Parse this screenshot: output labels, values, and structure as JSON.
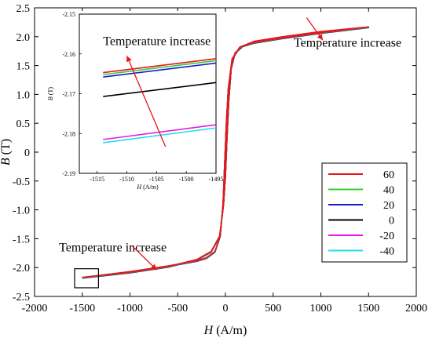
{
  "chart_data": [
    {
      "type": "line",
      "role": "main",
      "xlabel_symbol": "H",
      "xlabel_unit": " (A/m)",
      "ylabel_symbol": "B",
      "ylabel_unit": " (T)",
      "xlim": [
        -2000,
        2000
      ],
      "ylim": [
        -2.5,
        2.5
      ],
      "x_ticks": [
        -2000,
        -1500,
        -1000,
        -500,
        0,
        500,
        1000,
        1500,
        2000
      ],
      "y_ticks": [
        -2.5,
        -2.0,
        -1.5,
        -1.0,
        -0.5,
        0,
        0.5,
        1.0,
        1.5,
        2.0,
        2.5
      ],
      "y_tick_labels": [
        "-2.5",
        "-2.0",
        "-1.5",
        "-1.0",
        "-0.5",
        "0",
        "0.5",
        "1.0",
        "1.5",
        "2.0",
        "2.5"
      ],
      "grid": false,
      "series": [
        {
          "name": "60",
          "color": "#e8141c",
          "ascending": [
            [
              -1500,
              -2.17
            ],
            [
              -1000,
              -2.08
            ],
            [
              -600,
              -1.98
            ],
            [
              -300,
              -1.86
            ],
            [
              -150,
              -1.72
            ],
            [
              -60,
              -1.45
            ],
            [
              -20,
              -0.9
            ],
            [
              0,
              -0.4
            ],
            [
              15,
              0.2
            ],
            [
              35,
              0.9
            ],
            [
              60,
              1.45
            ],
            [
              100,
              1.72
            ],
            [
              180,
              1.84
            ],
            [
              300,
              1.9
            ],
            [
              600,
              1.98
            ],
            [
              1000,
              2.07
            ],
            [
              1500,
              2.17
            ]
          ],
          "descending": [
            [
              1500,
              2.17
            ],
            [
              1000,
              2.09
            ],
            [
              600,
              2.0
            ],
            [
              300,
              1.92
            ],
            [
              150,
              1.82
            ],
            [
              70,
              1.62
            ],
            [
              30,
              1.1
            ],
            [
              10,
              0.5
            ],
            [
              -8,
              -0.2
            ],
            [
              -25,
              -0.9
            ],
            [
              -55,
              -1.45
            ],
            [
              -110,
              -1.72
            ],
            [
              -200,
              -1.83
            ],
            [
              -300,
              -1.88
            ],
            [
              -600,
              -1.97
            ],
            [
              -1000,
              -2.07
            ],
            [
              -1500,
              -2.17
            ]
          ]
        },
        {
          "name": "40",
          "color": "#33cc33",
          "ascending": [
            [
              -1500,
              -2.175
            ],
            [
              -1000,
              -2.085
            ],
            [
              -600,
              -1.985
            ],
            [
              -300,
              -1.865
            ],
            [
              -150,
              -1.725
            ],
            [
              -60,
              -1.455
            ],
            [
              -20,
              -0.905
            ],
            [
              0,
              -0.405
            ],
            [
              15,
              0.195
            ],
            [
              35,
              0.895
            ],
            [
              60,
              1.445
            ],
            [
              100,
              1.715
            ],
            [
              180,
              1.835
            ],
            [
              300,
              1.895
            ],
            [
              600,
              1.975
            ],
            [
              1000,
              2.065
            ],
            [
              1500,
              2.165
            ]
          ],
          "descending": [
            [
              1500,
              2.165
            ],
            [
              1000,
              2.085
            ],
            [
              600,
              1.995
            ],
            [
              300,
              1.915
            ],
            [
              150,
              1.815
            ],
            [
              70,
              1.615
            ],
            [
              30,
              1.095
            ],
            [
              10,
              0.495
            ],
            [
              -8,
              -0.205
            ],
            [
              -25,
              -0.905
            ],
            [
              -55,
              -1.455
            ],
            [
              -110,
              -1.725
            ],
            [
              -200,
              -1.835
            ],
            [
              -300,
              -1.885
            ],
            [
              -600,
              -1.975
            ],
            [
              -1000,
              -2.075
            ],
            [
              -1500,
              -2.175
            ]
          ]
        },
        {
          "name": "20",
          "color": "#1a1acc",
          "ascending": [
            [
              -1500,
              -2.178
            ],
            [
              -1000,
              -2.088
            ],
            [
              -600,
              -1.988
            ],
            [
              -300,
              -1.868
            ],
            [
              -150,
              -1.728
            ],
            [
              -60,
              -1.458
            ],
            [
              -20,
              -0.908
            ],
            [
              0,
              -0.408
            ],
            [
              15,
              0.192
            ],
            [
              35,
              0.892
            ],
            [
              60,
              1.442
            ],
            [
              100,
              1.712
            ],
            [
              180,
              1.832
            ],
            [
              300,
              1.892
            ],
            [
              600,
              1.972
            ],
            [
              1000,
              2.062
            ],
            [
              1500,
              2.162
            ]
          ],
          "descending": [
            [
              1500,
              2.162
            ],
            [
              1000,
              2.082
            ],
            [
              600,
              1.992
            ],
            [
              300,
              1.912
            ],
            [
              150,
              1.812
            ],
            [
              70,
              1.612
            ],
            [
              30,
              1.092
            ],
            [
              10,
              0.492
            ],
            [
              -8,
              -0.208
            ],
            [
              -25,
              -0.908
            ],
            [
              -55,
              -1.458
            ],
            [
              -110,
              -1.728
            ],
            [
              -200,
              -1.838
            ],
            [
              -300,
              -1.888
            ],
            [
              -600,
              -1.978
            ],
            [
              -1000,
              -2.078
            ],
            [
              -1500,
              -2.178
            ]
          ]
        },
        {
          "name": "0",
          "color": "#000000",
          "ascending": [
            [
              -1500,
              -2.18
            ],
            [
              -1000,
              -2.09
            ],
            [
              -600,
              -1.99
            ],
            [
              -300,
              -1.87
            ],
            [
              -150,
              -1.73
            ],
            [
              -60,
              -1.46
            ],
            [
              -20,
              -0.91
            ],
            [
              0,
              -0.41
            ],
            [
              15,
              0.19
            ],
            [
              35,
              0.89
            ],
            [
              60,
              1.44
            ],
            [
              100,
              1.71
            ],
            [
              180,
              1.83
            ],
            [
              300,
              1.89
            ],
            [
              600,
              1.97
            ],
            [
              1000,
              2.06
            ],
            [
              1500,
              2.16
            ]
          ],
          "descending": [
            [
              1500,
              2.16
            ],
            [
              1000,
              2.08
            ],
            [
              600,
              1.99
            ],
            [
              300,
              1.91
            ],
            [
              150,
              1.81
            ],
            [
              70,
              1.61
            ],
            [
              30,
              1.09
            ],
            [
              10,
              0.49
            ],
            [
              -8,
              -0.21
            ],
            [
              -25,
              -0.91
            ],
            [
              -55,
              -1.46
            ],
            [
              -110,
              -1.73
            ],
            [
              -200,
              -1.84
            ],
            [
              -300,
              -1.89
            ],
            [
              -600,
              -1.98
            ],
            [
              -1000,
              -2.08
            ],
            [
              -1500,
              -2.18
            ]
          ]
        },
        {
          "name": "-20",
          "color": "#e619e6",
          "ascending": [
            [
              -1500,
              -2.182
            ],
            [
              -1000,
              -2.092
            ],
            [
              -600,
              -1.992
            ],
            [
              -300,
              -1.872
            ],
            [
              -150,
              -1.732
            ],
            [
              -60,
              -1.462
            ],
            [
              -20,
              -0.912
            ],
            [
              0,
              -0.412
            ],
            [
              15,
              0.188
            ],
            [
              35,
              0.888
            ],
            [
              60,
              1.438
            ],
            [
              100,
              1.708
            ],
            [
              180,
              1.828
            ],
            [
              300,
              1.888
            ],
            [
              600,
              1.968
            ],
            [
              1000,
              2.058
            ],
            [
              1500,
              2.158
            ]
          ],
          "descending": [
            [
              1500,
              2.158
            ],
            [
              1000,
              2.078
            ],
            [
              600,
              1.988
            ],
            [
              300,
              1.908
            ],
            [
              150,
              1.808
            ],
            [
              70,
              1.608
            ],
            [
              30,
              1.088
            ],
            [
              10,
              0.488
            ],
            [
              -8,
              -0.212
            ],
            [
              -25,
              -0.912
            ],
            [
              -55,
              -1.462
            ],
            [
              -110,
              -1.732
            ],
            [
              -200,
              -1.842
            ],
            [
              -300,
              -1.892
            ],
            [
              -600,
              -1.982
            ],
            [
              -1000,
              -2.082
            ],
            [
              -1500,
              -2.182
            ]
          ]
        },
        {
          "name": "-40",
          "color": "#22e0e6",
          "ascending": [
            [
              -1500,
              -2.184
            ],
            [
              -1000,
              -2.094
            ],
            [
              -600,
              -1.994
            ],
            [
              -300,
              -1.874
            ],
            [
              -150,
              -1.734
            ],
            [
              -60,
              -1.464
            ],
            [
              -20,
              -0.914
            ],
            [
              0,
              -0.414
            ],
            [
              15,
              0.186
            ],
            [
              35,
              0.886
            ],
            [
              60,
              1.436
            ],
            [
              100,
              1.706
            ],
            [
              180,
              1.826
            ],
            [
              300,
              1.886
            ],
            [
              600,
              1.966
            ],
            [
              1000,
              2.056
            ],
            [
              1500,
              2.156
            ]
          ],
          "descending": [
            [
              1500,
              2.156
            ],
            [
              1000,
              2.076
            ],
            [
              600,
              1.986
            ],
            [
              300,
              1.906
            ],
            [
              150,
              1.806
            ],
            [
              70,
              1.606
            ],
            [
              30,
              1.086
            ],
            [
              10,
              0.486
            ],
            [
              -8,
              -0.214
            ],
            [
              -25,
              -0.914
            ],
            [
              -55,
              -1.464
            ],
            [
              -110,
              -1.734
            ],
            [
              -200,
              -1.844
            ],
            [
              -300,
              -1.894
            ],
            [
              -600,
              -1.984
            ],
            [
              -1000,
              -2.084
            ],
            [
              -1500,
              -2.184
            ]
          ]
        }
      ],
      "annotations": [
        {
          "text": "Temperature increase",
          "x": 1280,
          "y": 1.83
        },
        {
          "text": "Temperature increase",
          "x": -1180,
          "y": -1.72
        }
      ],
      "arrows": [
        {
          "from": [
            850,
            2.33
          ],
          "to": [
            1020,
            1.94
          ]
        },
        {
          "from": [
            -980,
            -1.62
          ],
          "to": [
            -720,
            -2.04
          ]
        }
      ],
      "zoom_box": {
        "x": [
          -1580,
          -1330
        ],
        "y": [
          -2.35,
          -2.02
        ]
      },
      "legend_position": "right",
      "legend_colors": [
        "#e8141c",
        "#33cc33",
        "#1a1acc",
        "#000000",
        "#e619e6",
        "#22e0e6"
      ],
      "legend_labels": [
        "60",
        "40",
        "20",
        "0",
        "-20",
        "-40"
      ]
    },
    {
      "type": "line",
      "role": "inset",
      "xlabel_symbol": "H",
      "xlabel_unit": " (A/m)",
      "ylabel_symbol": "B",
      "ylabel_unit": " (T)",
      "xlim": [
        -1518,
        -1495
      ],
      "ylim": [
        -2.19,
        -2.15
      ],
      "x_ticks": [
        -1515,
        -1510,
        -1505,
        -1500,
        -1495
      ],
      "y_ticks": [
        -2.19,
        -2.18,
        -2.17,
        -2.16,
        -2.15
      ],
      "grid": false,
      "series": [
        {
          "name": "60",
          "color": "#e8141c",
          "values": [
            [
              -1514,
              -2.1647
            ],
            [
              -1495,
              -2.1612
            ]
          ]
        },
        {
          "name": "40",
          "color": "#33cc33",
          "values": [
            [
              -1514,
              -2.1652
            ],
            [
              -1495,
              -2.1617
            ]
          ]
        },
        {
          "name": "20",
          "color": "#1a1acc",
          "values": [
            [
              -1514,
              -2.1658
            ],
            [
              -1495,
              -2.1623
            ]
          ]
        },
        {
          "name": "0",
          "color": "#000000",
          "values": [
            [
              -1514,
              -2.1707
            ],
            [
              -1495,
              -2.1672
            ]
          ]
        },
        {
          "name": "-20",
          "color": "#e619e6",
          "values": [
            [
              -1514,
              -2.1815
            ],
            [
              -1495,
              -2.1778
            ]
          ]
        },
        {
          "name": "-40",
          "color": "#22e0e6",
          "values": [
            [
              -1514,
              -2.1823
            ],
            [
              -1495,
              -2.1786
            ]
          ]
        }
      ],
      "annotations": [
        {
          "text": "Temperature increase",
          "x": -1514,
          "y": -2.1578
        }
      ],
      "arrows": [
        {
          "from": [
            -1503.5,
            -2.1833
          ],
          "to": [
            -1510,
            -2.1605
          ]
        }
      ]
    }
  ]
}
